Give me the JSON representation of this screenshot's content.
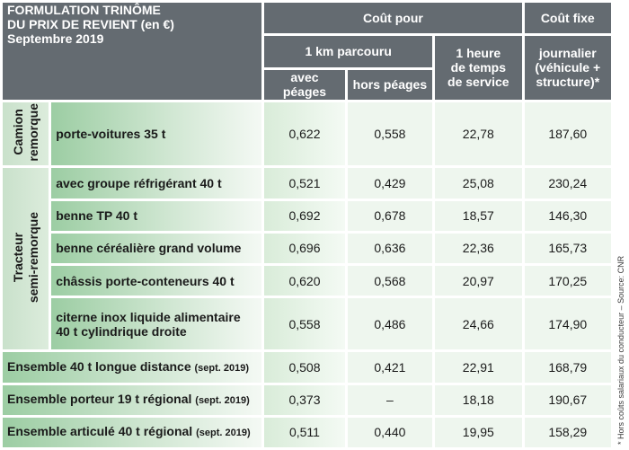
{
  "header": {
    "title_lines": [
      "FORMULATION TRINÔME",
      "DU PRIX DE REVIENT (en €)",
      "Septembre 2019"
    ],
    "cout_pour": "Coût pour",
    "cout_fixe": "Coût fixe",
    "km_parcouru": "1 km parcouru",
    "heure_service": [
      "1 heure",
      "de temps",
      "de service"
    ],
    "journalier": [
      "journalier",
      "(véhicule +",
      "structure)*"
    ],
    "avec_peages": "avec péages",
    "hors_peages": "hors péages"
  },
  "groups": {
    "camion_remorque": [
      "Camion",
      "remorque"
    ],
    "tracteur_semi": [
      "Tracteur",
      "semi-remorque"
    ]
  },
  "rows": [
    {
      "label": "porte-voitures 35 t",
      "avec": "0,622",
      "hors": "0,558",
      "heure": "22,78",
      "fixe": "187,60"
    },
    {
      "label": "avec groupe réfrigérant 40 t",
      "avec": "0,521",
      "hors": "0,429",
      "heure": "25,08",
      "fixe": "230,24"
    },
    {
      "label": "benne TP 40 t",
      "avec": "0,692",
      "hors": "0,678",
      "heure": "18,57",
      "fixe": "146,30"
    },
    {
      "label": "benne céréalière grand volume",
      "avec": "0,696",
      "hors": "0,636",
      "heure": "22,36",
      "fixe": "165,73"
    },
    {
      "label": "châssis porte-conteneurs 40 t",
      "avec": "0,620",
      "hors": "0,568",
      "heure": "20,97",
      "fixe": "170,25"
    },
    {
      "label_lines": [
        "citerne inox liquide alimentaire",
        "40 t cylindrique droite"
      ],
      "avec": "0,558",
      "hors": "0,486",
      "heure": "24,66",
      "fixe": "174,90"
    },
    {
      "label": "Ensemble 40 t longue distance",
      "sub": "(sept. 2019)",
      "avec": "0,508",
      "hors": "0,421",
      "heure": "22,91",
      "fixe": "168,79"
    },
    {
      "label": "Ensemble porteur 19 t régional",
      "sub": "(sept. 2019)",
      "avec": "0,373",
      "hors": "–",
      "heure": "18,18",
      "fixe": "190,67"
    },
    {
      "label": "Ensemble articulé 40 t régional",
      "sub": "(sept. 2019)",
      "avec": "0,511",
      "hors": "0,440",
      "heure": "19,95",
      "fixe": "158,29"
    }
  ],
  "footnote": "* Hors coûts salariaux du conducteur – Source: CNR",
  "colors": {
    "header_bg": "#646b71",
    "group_bg": "#cfe6d1",
    "label_bg": "#9ccda3",
    "value_bg": "#eef6ee"
  }
}
